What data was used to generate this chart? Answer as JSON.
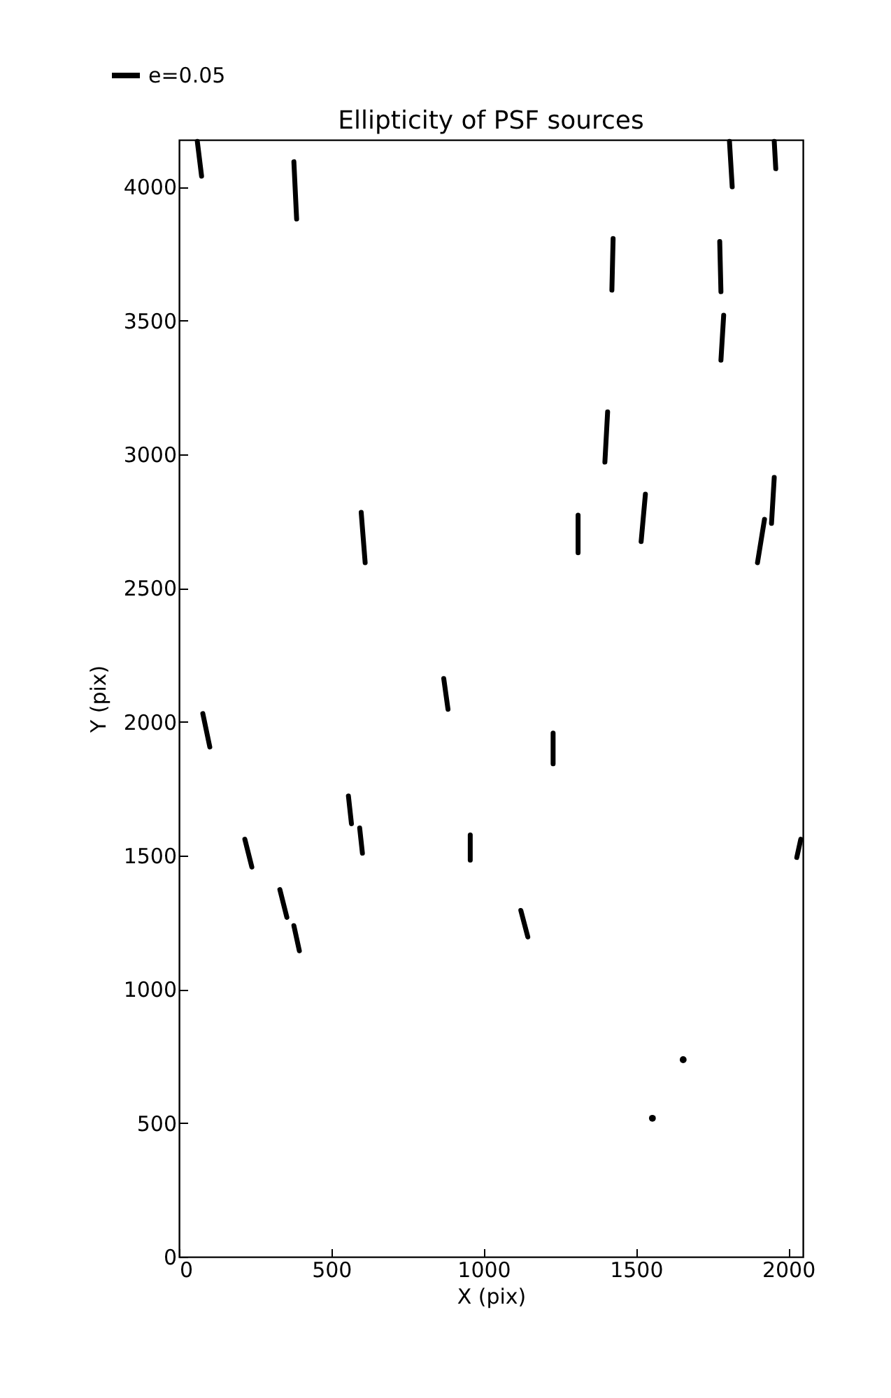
{
  "chart_data": {
    "type": "line",
    "title": "Ellipticity of PSF sources",
    "xlabel": "X (pix)",
    "ylabel": "Y (pix)",
    "xlim": [
      0,
      2048
    ],
    "ylim": [
      0,
      4176
    ],
    "xticks": [
      0,
      500,
      1000,
      1500,
      2000
    ],
    "yticks": [
      0,
      500,
      1000,
      1500,
      2000,
      2500,
      3000,
      3500,
      4000
    ],
    "grid": false,
    "legend": "top left",
    "line_style": "solid",
    "series": [
      {
        "name": "e=0.05",
        "color": "#000000",
        "x": [
          60,
          74
        ],
        "values": [
          4170,
          4040
        ]
      },
      {
        "color": "#000000",
        "x": [
          377,
          386
        ],
        "values": [
          4094,
          3880
        ]
      },
      {
        "color": "#000000",
        "x": [
          1807,
          1816
        ],
        "values": [
          4170,
          4000
        ]
      },
      {
        "color": "#000000",
        "x": [
          1954,
          1959
        ],
        "values": [
          4170,
          4068
        ]
      },
      {
        "color": "#000000",
        "x": [
          1425,
          1421
        ],
        "values": [
          3807,
          3614
        ]
      },
      {
        "color": "#000000",
        "x": [
          1775,
          1779
        ],
        "values": [
          3796,
          3608
        ]
      },
      {
        "color": "#000000",
        "x": [
          1788,
          1779
        ],
        "values": [
          3520,
          3352
        ]
      },
      {
        "color": "#000000",
        "x": [
          1407,
          1398
        ],
        "values": [
          3159,
          2971
        ]
      },
      {
        "color": "#000000",
        "x": [
          598,
          611
        ],
        "values": [
          2783,
          2595
        ]
      },
      {
        "color": "#000000",
        "x": [
          1310,
          1310
        ],
        "values": [
          2773,
          2632
        ]
      },
      {
        "color": "#000000",
        "x": [
          1531,
          1517
        ],
        "values": [
          2851,
          2674
        ]
      },
      {
        "color": "#000000",
        "x": [
          1954,
          1945
        ],
        "values": [
          2914,
          2742
        ]
      },
      {
        "color": "#000000",
        "x": [
          1922,
          1899
        ],
        "values": [
          2757,
          2595
        ]
      },
      {
        "color": "#000000",
        "x": [
          78,
          101
        ],
        "values": [
          2031,
          1906
        ]
      },
      {
        "color": "#000000",
        "x": [
          869,
          883
        ],
        "values": [
          2162,
          2047
        ]
      },
      {
        "color": "#000000",
        "x": [
          1228,
          1228
        ],
        "values": [
          1958,
          1843
        ]
      },
      {
        "color": "#000000",
        "x": [
          556,
          566
        ],
        "values": [
          1723,
          1619
        ]
      },
      {
        "color": "#000000",
        "x": [
          593,
          602
        ],
        "values": [
          1603,
          1509
        ]
      },
      {
        "color": "#000000",
        "x": [
          956,
          956
        ],
        "values": [
          1577,
          1483
        ]
      },
      {
        "color": "#000000",
        "x": [
          216,
          239
        ],
        "values": [
          1561,
          1457
        ]
      },
      {
        "color": "#000000",
        "x": [
          331,
          354
        ],
        "values": [
          1373,
          1269
        ]
      },
      {
        "color": "#000000",
        "x": [
          377,
          395
        ],
        "values": [
          1238,
          1144
        ]
      },
      {
        "color": "#000000",
        "x": [
          1122,
          1145
        ],
        "values": [
          1295,
          1196
        ]
      },
      {
        "color": "#000000",
        "x": [
          2041,
          2028
        ],
        "values": [
          1561,
          1493
        ]
      },
      {
        "type": "scatter",
        "marker": "circle",
        "color": "#000000",
        "x": [
          1655,
          1554
        ],
        "values": [
          737,
          518
        ]
      }
    ]
  }
}
